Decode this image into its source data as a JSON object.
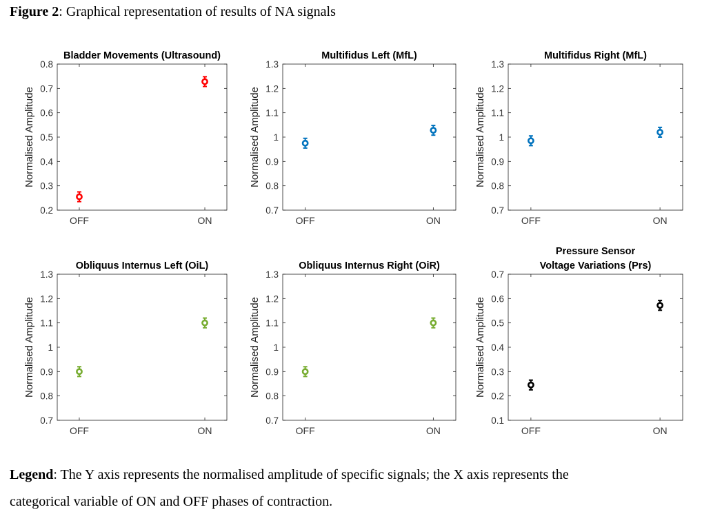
{
  "caption": {
    "label": "Figure 2",
    "text": ": Graphical representation of results of NA signals"
  },
  "legend": {
    "label": "Legend",
    "text_line1": ": The Y axis represents the normalised amplitude of specific signals; the X axis represents the",
    "text_line2": "categorical variable of ON and OFF phases of contraction."
  },
  "chart_data": [
    {
      "type": "scatter",
      "title": [
        "Bladder Movements (Ultrasound)"
      ],
      "ylabel": "Normalised Amplitude",
      "categories": [
        "OFF",
        "ON"
      ],
      "ylim": [
        0.2,
        0.8
      ],
      "yticks": [
        "0.2",
        "0.3",
        "0.4",
        "0.5",
        "0.6",
        "0.7",
        "0.8"
      ],
      "values": [
        0.255,
        0.728
      ],
      "error": [
        0.02,
        0.02
      ],
      "color": "#ff0000"
    },
    {
      "type": "scatter",
      "title": [
        "Multifidus Left (MfL)"
      ],
      "ylabel": "Normalised Amplitude",
      "categories": [
        "OFF",
        "ON"
      ],
      "ylim": [
        0.7,
        1.3
      ],
      "yticks": [
        "0.7",
        "0.8",
        "0.9",
        "1",
        "1.1",
        "1.2",
        "1.3"
      ],
      "values": [
        0.975,
        1.028
      ],
      "error": [
        0.02,
        0.02
      ],
      "color": "#0072bd"
    },
    {
      "type": "scatter",
      "title": [
        "Multifidus Right (MfL)"
      ],
      "ylabel": "Normalised Amplitude",
      "categories": [
        "OFF",
        "ON"
      ],
      "ylim": [
        0.7,
        1.3
      ],
      "yticks": [
        "0.7",
        "0.8",
        "0.9",
        "1",
        "1.1",
        "1.2",
        "1.3"
      ],
      "values": [
        0.985,
        1.02
      ],
      "error": [
        0.02,
        0.02
      ],
      "color": "#0072bd"
    },
    {
      "type": "scatter",
      "title": [
        "Obliquus Internus Left (OiL)"
      ],
      "ylabel": "Normalised Amplitude",
      "categories": [
        "OFF",
        "ON"
      ],
      "ylim": [
        0.7,
        1.3
      ],
      "yticks": [
        "0.7",
        "0.8",
        "0.9",
        "1",
        "1.1",
        "1.2",
        "1.3"
      ],
      "values": [
        0.9,
        1.1
      ],
      "error": [
        0.02,
        0.02
      ],
      "color": "#77ac30"
    },
    {
      "type": "scatter",
      "title": [
        "Obliquus Internus Right (OiR)"
      ],
      "ylabel": "Normalised Amplitude",
      "categories": [
        "OFF",
        "ON"
      ],
      "ylim": [
        0.7,
        1.3
      ],
      "yticks": [
        "0.7",
        "0.8",
        "0.9",
        "1",
        "1.1",
        "1.2",
        "1.3"
      ],
      "values": [
        0.9,
        1.1
      ],
      "error": [
        0.02,
        0.02
      ],
      "color": "#77ac30"
    },
    {
      "type": "scatter",
      "title": [
        "Pressure Sensor",
        "Voltage Variations (Prs)"
      ],
      "ylabel": "Normalised Amplitude",
      "categories": [
        "OFF",
        "ON"
      ],
      "ylim": [
        0.1,
        0.7
      ],
      "yticks": [
        "0.1",
        "0.2",
        "0.3",
        "0.4",
        "0.5",
        "0.6",
        "0.7"
      ],
      "values": [
        0.245,
        0.572
      ],
      "error": [
        0.02,
        0.02
      ],
      "color": "#000000"
    }
  ]
}
